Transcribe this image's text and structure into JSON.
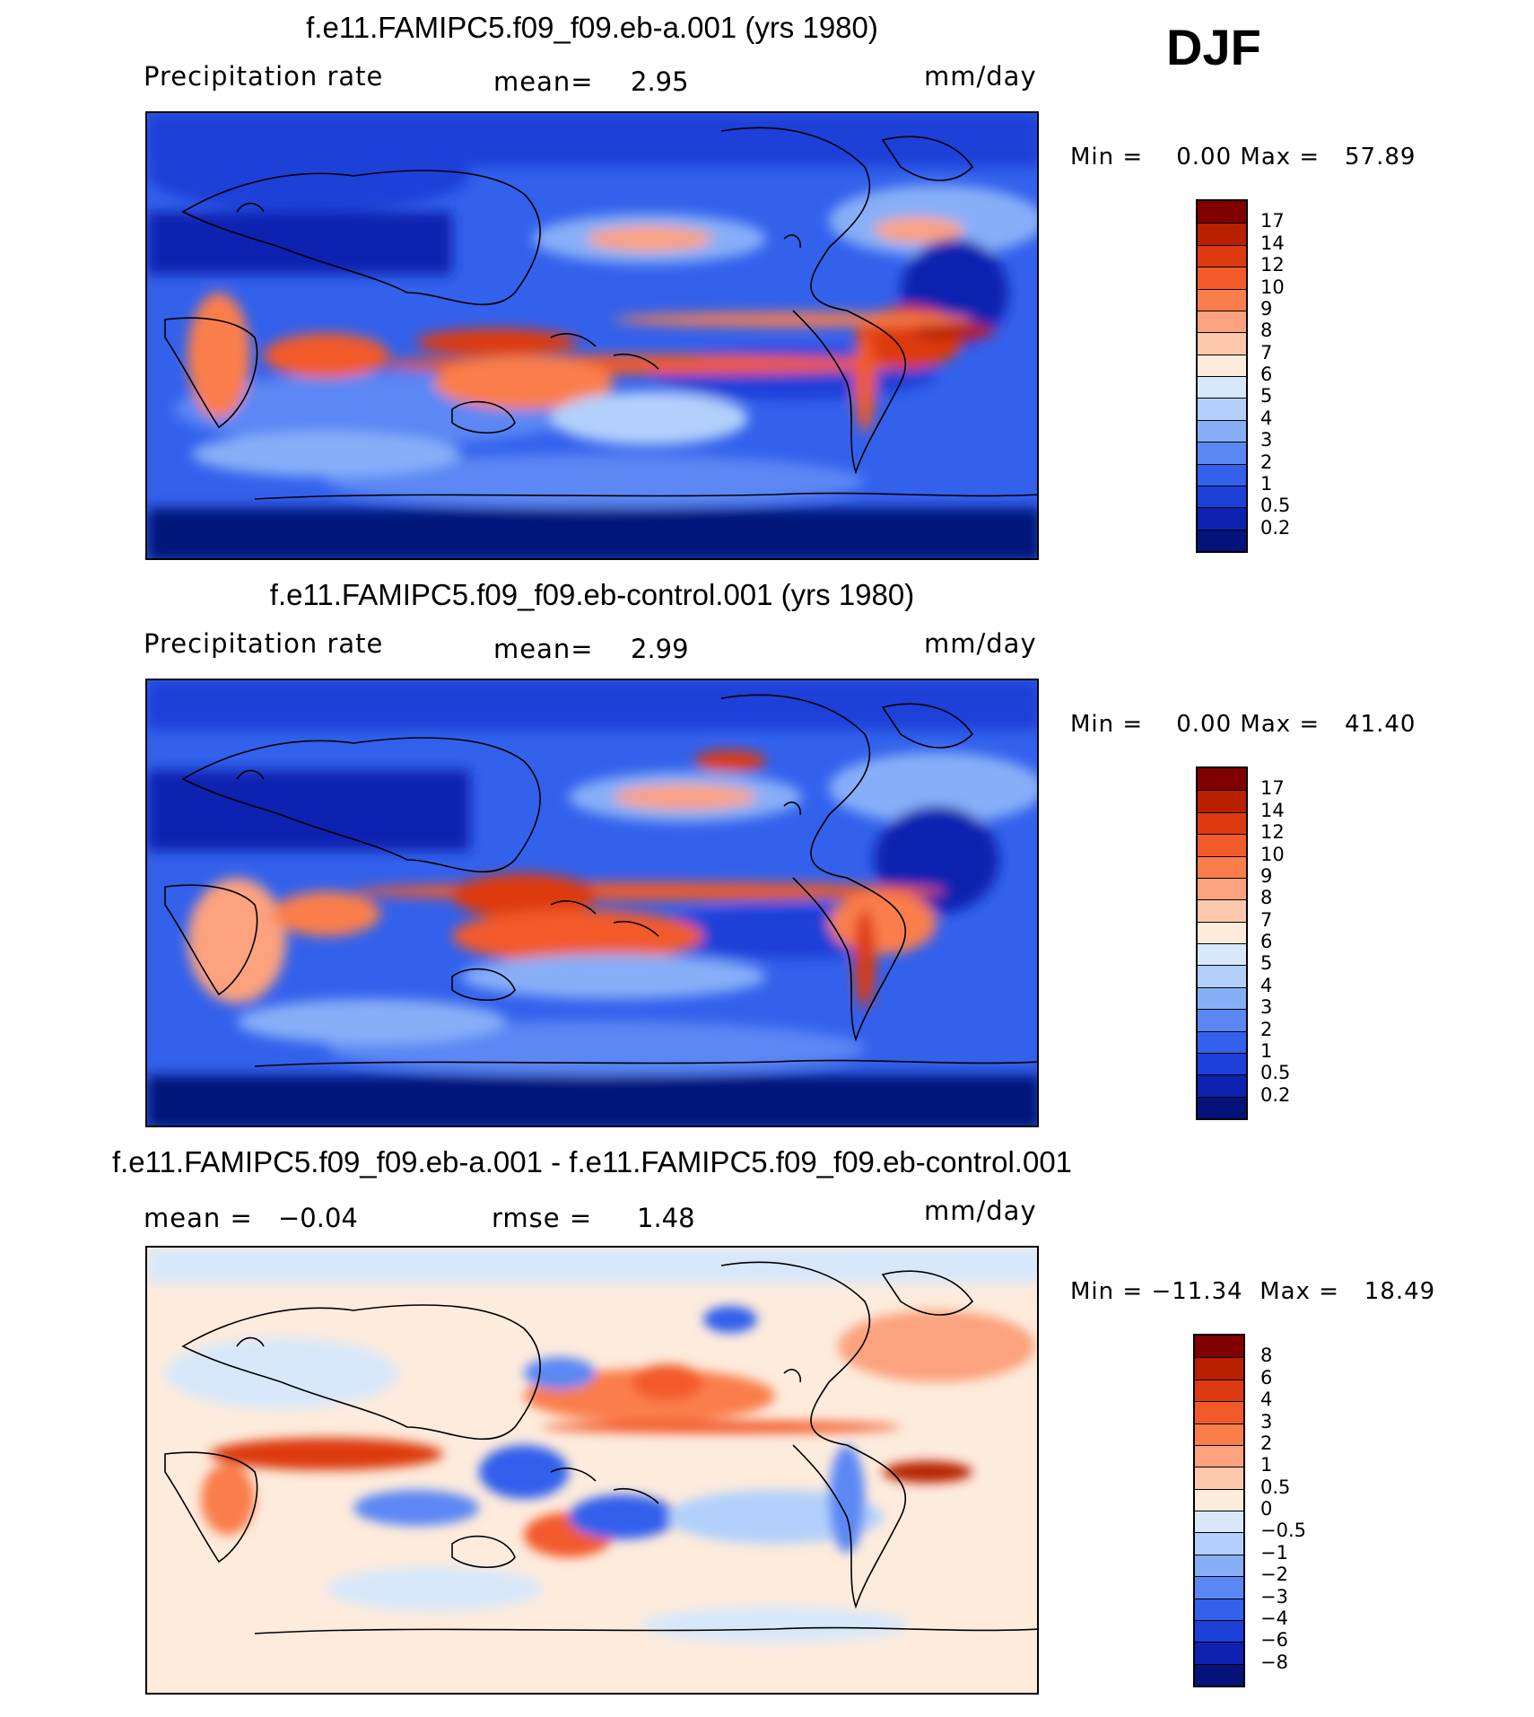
{
  "season": "DJF",
  "panels": [
    {
      "title": "f.e11.FAMIPC5.f09_f09.eb-a.001 (yrs 1980)",
      "variable": "Precipitation  rate",
      "stat1_label": "mean=",
      "stat1_value": "2.95",
      "stat2_label": "",
      "stat2_value": "",
      "units": "mm/day",
      "minmax": "Min =    0.00 Max =   57.89",
      "colorbar_labels": [
        "17",
        "14",
        "12",
        "10",
        "9",
        "8",
        "7",
        "6",
        "5",
        "4",
        "3",
        "2",
        "1",
        "0.5",
        "0.2"
      ],
      "colors": [
        "#800000",
        "#b82000",
        "#dd3a10",
        "#f25a2a",
        "#fa7e4c",
        "#fca27e",
        "#fdc8ac",
        "#fdebdc",
        "#d8e8fa",
        "#b2d0fb",
        "#87aff8",
        "#5b87f4",
        "#3361ec",
        "#1c3fd8",
        "#0d22b0",
        "#05127a"
      ]
    },
    {
      "title": "f.e11.FAMIPC5.f09_f09.eb-control.001 (yrs 1980)",
      "variable": "Precipitation  rate",
      "stat1_label": "mean=",
      "stat1_value": "2.99",
      "stat2_label": "",
      "stat2_value": "",
      "units": "mm/day",
      "minmax": "Min =    0.00 Max =   41.40",
      "colorbar_labels": [
        "17",
        "14",
        "12",
        "10",
        "9",
        "8",
        "7",
        "6",
        "5",
        "4",
        "3",
        "2",
        "1",
        "0.5",
        "0.2"
      ],
      "colors": [
        "#800000",
        "#b82000",
        "#dd3a10",
        "#f25a2a",
        "#fa7e4c",
        "#fca27e",
        "#fdc8ac",
        "#fdebdc",
        "#d8e8fa",
        "#b2d0fb",
        "#87aff8",
        "#5b87f4",
        "#3361ec",
        "#1c3fd8",
        "#0d22b0",
        "#05127a"
      ]
    },
    {
      "title": "f.e11.FAMIPC5.f09_f09.eb-a.001 - f.e11.FAMIPC5.f09_f09.eb-control.001",
      "variable": "mean =",
      "stat1_label": "",
      "stat1_value": "−0.04",
      "stat2_label": "rmse =",
      "stat2_value": "1.48",
      "units": "mm/day",
      "minmax": "Min = −11.34  Max =   18.49",
      "colorbar_labels": [
        "8",
        "6",
        "4",
        "3",
        "2",
        "1",
        "0.5",
        "0",
        "−0.5",
        "−1",
        "−2",
        "−3",
        "−4",
        "−6",
        "−8"
      ],
      "colors": [
        "#800000",
        "#b82000",
        "#dd3a10",
        "#f25a2a",
        "#fa7e4c",
        "#fca27e",
        "#fdc8ac",
        "#fdebdc",
        "#d8e8fa",
        "#b2d0fb",
        "#87aff8",
        "#5b87f4",
        "#3361ec",
        "#1c3fd8",
        "#0d22b0",
        "#05127a"
      ]
    }
  ]
}
